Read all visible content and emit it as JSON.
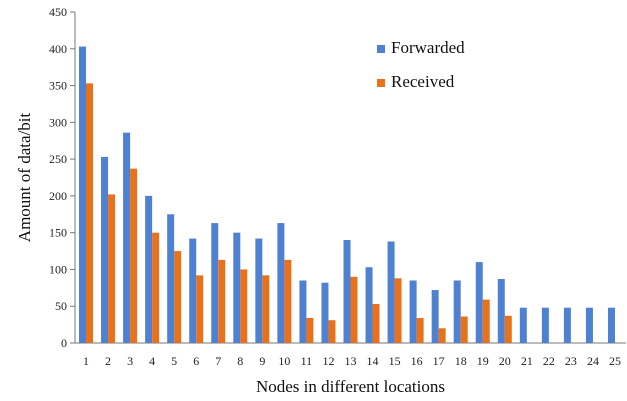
{
  "chart_data": {
    "type": "bar",
    "categories": [
      "1",
      "2",
      "3",
      "4",
      "5",
      "6",
      "7",
      "8",
      "9",
      "10",
      "11",
      "12",
      "13",
      "14",
      "15",
      "16",
      "17",
      "18",
      "19",
      "20",
      "21",
      "22",
      "23",
      "24",
      "25"
    ],
    "series": [
      {
        "name": "Forwarded",
        "color": "#4f81d2",
        "values": [
          403,
          253,
          286,
          200,
          175,
          142,
          163,
          150,
          142,
          163,
          85,
          82,
          140,
          103,
          138,
          85,
          72,
          85,
          110,
          87,
          48,
          48,
          48,
          48,
          48
        ]
      },
      {
        "name": "Received",
        "color": "#e8721c",
        "values": [
          353,
          202,
          237,
          150,
          125,
          92,
          113,
          100,
          92,
          113,
          34,
          31,
          90,
          53,
          88,
          34,
          20,
          36,
          59,
          37,
          0,
          0,
          0,
          0,
          0
        ]
      }
    ],
    "title": "",
    "xlabel": "Nodes in different locations",
    "ylabel": "Amount of data/bit",
    "ylim": [
      0,
      450
    ],
    "yticks": [
      "0",
      "50",
      "100",
      "150",
      "200",
      "250",
      "300",
      "350",
      "400",
      "450"
    ],
    "grid": false,
    "legend_position": "top-right"
  }
}
